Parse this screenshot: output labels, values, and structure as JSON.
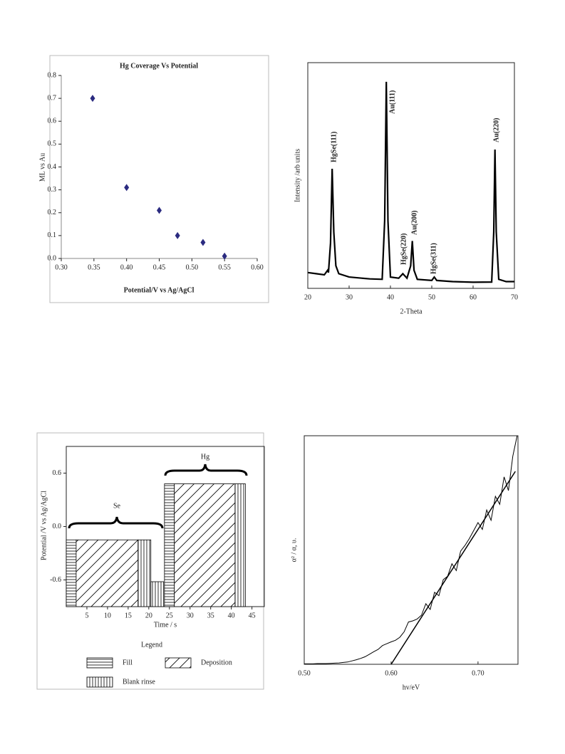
{
  "chart_data": [
    {
      "type": "scatter",
      "title": "Hg Coverage Vs Potential",
      "xlabel": "Potential/V vs Ag/AgCl",
      "ylabel": "ML vs Au",
      "x": [
        0.348,
        0.4,
        0.45,
        0.478,
        0.517,
        0.55
      ],
      "values": [
        0.7,
        0.31,
        0.21,
        0.1,
        0.07,
        0.01
      ],
      "color": "#2b2b80",
      "xlim": [
        0.3,
        0.6
      ],
      "xticks": [
        {
          "value": 0.3,
          "label": "0.30"
        },
        0.35,
        {
          "value": 0.4,
          "label": "0.40"
        },
        0.45,
        {
          "value": 0.5,
          "label": "0.50"
        },
        0.55,
        {
          "value": 0.6,
          "label": "0.60"
        }
      ],
      "ylim": [
        0,
        0.8
      ],
      "yticks": [
        {
          "value": 0,
          "label": "0.0"
        },
        0.1,
        0.2,
        0.3,
        0.4,
        0.5,
        0.6,
        0.7,
        0.8
      ]
    },
    {
      "type": "line",
      "xlabel": "2-Theta",
      "ylabel": "Intensity /arb units",
      "color": "#000000",
      "x": [
        20,
        22,
        24,
        24.8,
        25,
        25.5,
        25.9,
        26.3,
        26.8,
        27.5,
        30,
        35,
        38,
        38.6,
        39,
        39.4,
        40,
        42,
        43,
        44,
        44.9,
        45.3,
        45.7,
        46.5,
        50,
        50.6,
        51.2,
        55,
        60,
        64.5,
        65,
        65.3,
        65.6,
        66.2,
        68,
        70
      ],
      "values": [
        7,
        6.5,
        6,
        8,
        7,
        20,
        53,
        25,
        10,
        6.5,
        5,
        4.2,
        4,
        30,
        91.5,
        30,
        5,
        4.5,
        6.5,
        4.5,
        10,
        21,
        8,
        4,
        3.5,
        5,
        3.5,
        3,
        2.7,
        2.8,
        25,
        61.5,
        25,
        4,
        3,
        3
      ],
      "annotations": [
        "HgSe(111)",
        "Au(111)",
        "HgSe(220)",
        "Au(200)",
        "HgSe(311)",
        "Au(220)"
      ],
      "xlim": [
        20,
        70
      ],
      "xticks": [
        20,
        30,
        40,
        50,
        60,
        70
      ],
      "ylim": [
        0,
        100
      ]
    },
    {
      "type": "step-bars",
      "xlabel": "Time / s",
      "ylabel": "Potential /V vs Ag/AgCl",
      "legend_title": "Legend",
      "annotations": [
        "Se",
        "Hg"
      ],
      "series": [
        {
          "name": "Fill",
          "pattern": "horizontal",
          "x0": [
            0,
            23.8
          ],
          "x1": [
            2.4,
            26.2
          ],
          "values": [
            -0.15,
            0.48
          ]
        },
        {
          "name": "Deposition",
          "pattern": "diagonal",
          "x0": [
            2.4,
            26.2
          ],
          "x1": [
            17.4,
            40.9
          ],
          "values": [
            -0.15,
            0.48
          ]
        },
        {
          "name": "Blank rinse",
          "pattern": "vertical",
          "x0": [
            17.4,
            20.5,
            40.9
          ],
          "x1": [
            20.5,
            23.6,
            43.4
          ],
          "values": [
            -0.15,
            -0.62,
            0.48
          ]
        }
      ],
      "xlim": [
        0,
        48
      ],
      "xticks": [
        5,
        10,
        15,
        20,
        25,
        30,
        35,
        40,
        45
      ],
      "ylim": [
        -0.9,
        0.9
      ],
      "yticks": [
        -0.6,
        {
          "value": 0,
          "label": "0.0"
        },
        0.6
      ]
    },
    {
      "type": "line",
      "xlabel": "hv/eV",
      "ylabel": "α² / α, υ.",
      "color": "#000000",
      "x": [
        0.5,
        0.505,
        0.51,
        0.515,
        0.52,
        0.525,
        0.53,
        0.535,
        0.54,
        0.545,
        0.55,
        0.555,
        0.56,
        0.565,
        0.57,
        0.575,
        0.58,
        0.585,
        0.59,
        0.595,
        0.6,
        0.605,
        0.61,
        0.615,
        0.62,
        0.625,
        0.63,
        0.635,
        0.64,
        0.645,
        0.65,
        0.655,
        0.66,
        0.665,
        0.67,
        0.675,
        0.68,
        0.685,
        0.69,
        0.695,
        0.7,
        0.705,
        0.71,
        0.715,
        0.72,
        0.725,
        0.73,
        0.735,
        0.74,
        0.745
      ],
      "values": [
        0.2,
        0.2,
        0.2,
        0.3,
        0.3,
        0.3,
        0.4,
        0.5,
        0.6,
        0.8,
        1.0,
        1.5,
        2.0,
        2.6,
        3.3,
        4.4,
        5.5,
        6.5,
        8.2,
        9.0,
        9.8,
        10.5,
        11.8,
        14.2,
        18.5,
        19.0,
        19.8,
        21.5,
        26.5,
        24.0,
        31.5,
        30.0,
        37.0,
        38.5,
        44.0,
        41.0,
        49.5,
        52.0,
        55.0,
        58.5,
        62.0,
        59.0,
        67.5,
        63.0,
        73.5,
        70.0,
        82.0,
        76.0,
        91.0,
        100
      ],
      "fit": {
        "x": [
          0.6,
          0.743
        ],
        "values": [
          0,
          84.4
        ]
      },
      "xlim": [
        0.5,
        0.746
      ],
      "xticks": [
        {
          "value": 0.5,
          "label": "0.50"
        },
        {
          "value": 0.6,
          "label": "0.60"
        },
        {
          "value": 0.7,
          "label": "0.70"
        }
      ],
      "ylim": [
        0,
        100
      ]
    }
  ]
}
